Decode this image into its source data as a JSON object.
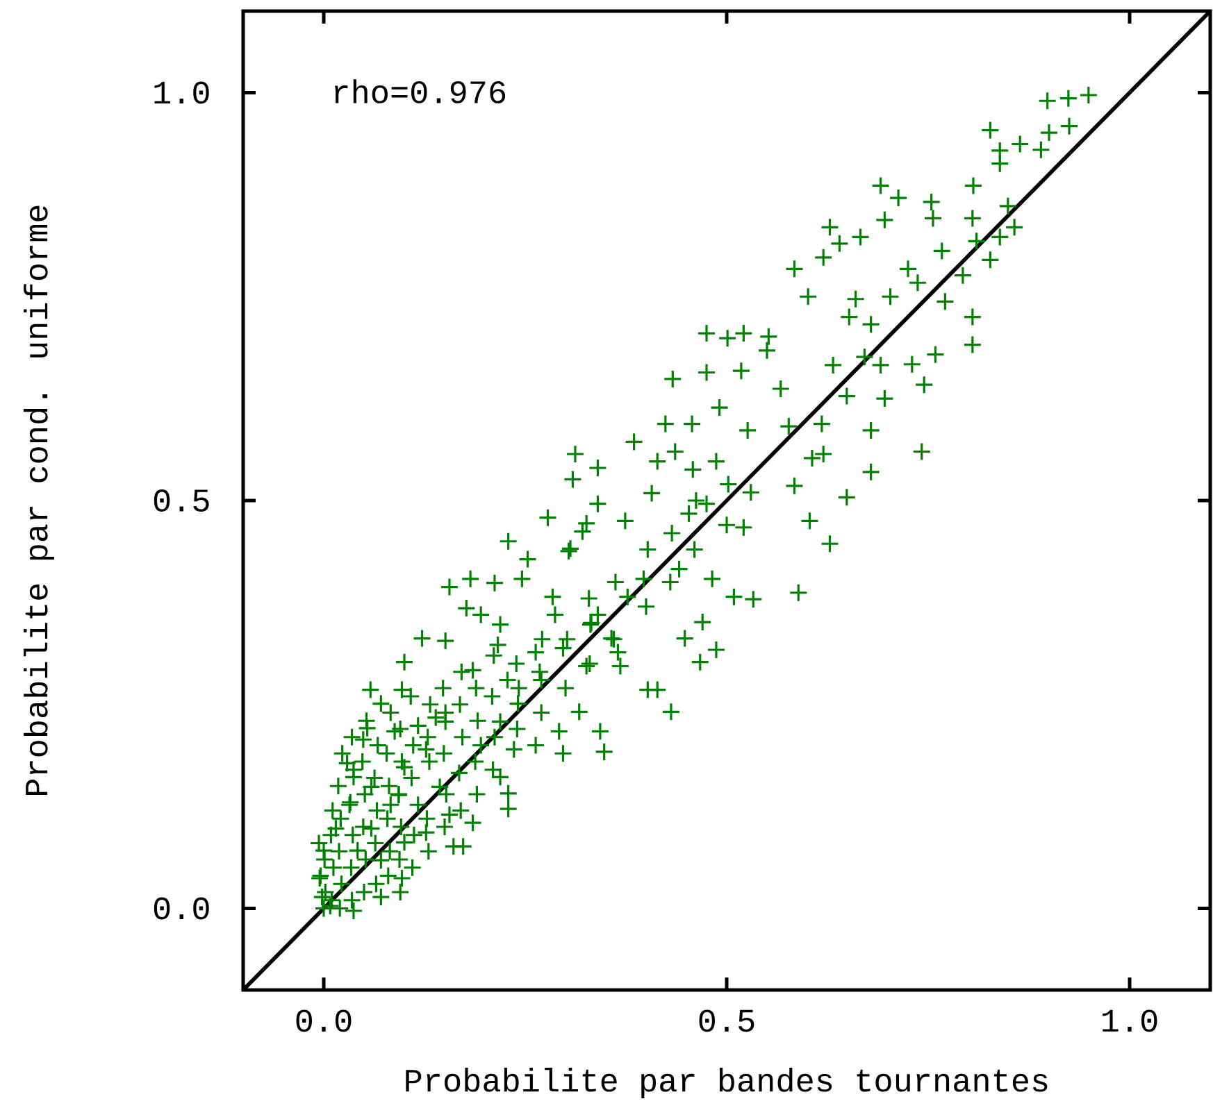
{
  "chart_data": {
    "type": "scatter",
    "xlabel": "Probabilite par bandes tournantes",
    "ylabel": "Probabilite par cond. uniforme",
    "annotations": [
      "rho=0.976"
    ],
    "xlim": [
      -0.1,
      1.1
    ],
    "ylim": [
      -0.1,
      1.1
    ],
    "xticks": [
      {
        "value": 0,
        "label": "0.0"
      },
      0.5,
      {
        "value": 1,
        "label": "1.0"
      }
    ],
    "yticks": [
      {
        "value": 0,
        "label": "0.0"
      },
      0.5,
      {
        "value": 1,
        "label": "1.0"
      }
    ],
    "marker": "cross",
    "series": [
      {
        "type": "scatter",
        "color": "#008000",
        "x": [
          0.924,
          0.949,
          0.898,
          0.827,
          0.839,
          0.864,
          0.9,
          0.925,
          0.89,
          0.839,
          0.691,
          0.713,
          0.754,
          0.806,
          0.696,
          0.756,
          0.805,
          0.849,
          0.857,
          0.628,
          0.64,
          0.666,
          0.62,
          0.584,
          0.601,
          0.66,
          0.725,
          0.767,
          0.81,
          0.839,
          0.827,
          0.793,
          0.703,
          0.737,
          0.771,
          0.805,
          0.805,
          0.759,
          0.652,
          0.679,
          0.632,
          0.671,
          0.691,
          0.73,
          0.745,
          0.696,
          0.649,
          0.679,
          0.742,
          0.475,
          0.501,
          0.521,
          0.552,
          0.475,
          0.518,
          0.433,
          0.567,
          0.55,
          0.491,
          0.424,
          0.457,
          0.526,
          0.577,
          0.618,
          0.606,
          0.487,
          0.436,
          0.385,
          0.312,
          0.34,
          0.414,
          0.458,
          0.309,
          0.407,
          0.34,
          0.278,
          0.326,
          0.374,
          0.229,
          0.306,
          0.253,
          0.156,
          0.182,
          0.212,
          0.246,
          0.62,
          0.679,
          0.649,
          0.584,
          0.603,
          0.628,
          0.589,
          0.533,
          0.509,
          0.521,
          0.475,
          0.453,
          0.441,
          0.482,
          0.47,
          0.487,
          0.467,
          0.431,
          0.414,
          0.448,
          0.368,
          0.34,
          0.284,
          0.228,
          0.357,
          0.397,
          0.058,
          0.071,
          0.054,
          0.122,
          0.151,
          0.177,
          0.195,
          0.304,
          0.321,
          0.185,
          0.216,
          0.1,
          0.097,
          0.139,
          0.236,
          0.263,
          0.297,
          0.348,
          0.402,
          0.229,
          0.229,
          0.185,
          0.161,
          0.127,
          0.097,
          0.071,
          0.037,
          0.008,
          -0.002,
          -0.005,
          0.0,
          0.015,
          0.032,
          0.037,
          0.029,
          0.049,
          0.088,
          0.117,
          0.042,
          0.059,
          0.083,
          0.071,
          0.1,
          0.117,
          0.144,
          0.168,
          0.195,
          0.219,
          0.241,
          0.27,
          0.297,
          0.331,
          0.377,
          0.263,
          0.151,
          0.127,
          0.1,
          0.059,
          0.093,
          0.219,
          0.287,
          0.326,
          0.365,
          0.317,
          0.343,
          0.292,
          0.219,
          0.156,
          0.173,
          0.0,
          0.002,
          -0.004,
          0.001,
          -0.006,
          0.01,
          0.012,
          0.009,
          0.011,
          0.02,
          0.022,
          0.019,
          0.021,
          0.018,
          0.023,
          0.035,
          0.034,
          0.036,
          0.033,
          0.037,
          0.035,
          0.05,
          0.052,
          0.049,
          0.051,
          0.048,
          0.053,
          0.065,
          0.064,
          0.066,
          0.063,
          0.067,
          0.08,
          0.082,
          0.079,
          0.081,
          0.078,
          0.083,
          0.095,
          0.094,
          0.096,
          0.093,
          0.097,
          0.095,
          0.11,
          0.112,
          0.109,
          0.111,
          0.108,
          0.13,
          0.128,
          0.131,
          0.129,
          0.132,
          0.15,
          0.152,
          0.149,
          0.151,
          0.148,
          0.17,
          0.172,
          0.169,
          0.171,
          0.19,
          0.188,
          0.191,
          0.189,
          0.21,
          0.212,
          0.209,
          0.211,
          0.24,
          0.242,
          0.239,
          0.27,
          0.268,
          0.271,
          0.3,
          0.302,
          0.33,
          0.332,
          0.329,
          0.36,
          0.362,
          0.4,
          0.402,
          0.43,
          0.432,
          0.46,
          0.462,
          0.5,
          0.502,
          0.53
        ],
        "values": [
          0.993,
          0.997,
          0.99,
          0.954,
          0.929,
          0.937,
          0.951,
          0.959,
          0.93,
          0.913,
          0.886,
          0.871,
          0.866,
          0.886,
          0.844,
          0.846,
          0.846,
          0.861,
          0.835,
          0.835,
          0.815,
          0.823,
          0.798,
          0.784,
          0.75,
          0.747,
          0.784,
          0.806,
          0.818,
          0.823,
          0.795,
          0.776,
          0.75,
          0.767,
          0.744,
          0.725,
          0.691,
          0.679,
          0.725,
          0.716,
          0.666,
          0.676,
          0.666,
          0.667,
          0.642,
          0.625,
          0.628,
          0.586,
          0.56,
          0.705,
          0.699,
          0.705,
          0.701,
          0.657,
          0.659,
          0.649,
          0.637,
          0.684,
          0.614,
          0.594,
          0.594,
          0.586,
          0.591,
          0.594,
          0.552,
          0.548,
          0.56,
          0.572,
          0.557,
          0.54,
          0.548,
          0.538,
          0.526,
          0.509,
          0.496,
          0.479,
          0.472,
          0.475,
          0.45,
          0.441,
          0.428,
          0.394,
          0.404,
          0.399,
          0.404,
          0.557,
          0.535,
          0.504,
          0.518,
          0.475,
          0.447,
          0.387,
          0.379,
          0.382,
          0.467,
          0.496,
          0.484,
          0.416,
          0.404,
          0.351,
          0.317,
          0.302,
          0.241,
          0.268,
          0.331,
          0.297,
          0.36,
          0.382,
          0.28,
          0.331,
          0.404,
          0.268,
          0.251,
          0.221,
          0.331,
          0.328,
          0.368,
          0.36,
          0.438,
          0.462,
          0.292,
          0.323,
          0.302,
          0.268,
          0.234,
          0.195,
          0.2,
          0.19,
          0.192,
          0.268,
          0.141,
          0.122,
          0.105,
          0.076,
          0.093,
          0.037,
          0.014,
          -0.003,
          0.003,
          0.014,
          0.037,
          0.071,
          0.098,
          0.127,
          0.161,
          0.178,
          0.207,
          0.217,
          0.224,
          0.071,
          0.098,
          0.127,
          0.059,
          0.081,
          0.127,
          0.149,
          0.166,
          0.2,
          0.229,
          0.251,
          0.28,
          0.319,
          0.348,
          0.382,
          0.314,
          0.229,
          0.195,
          0.173,
          0.149,
          0.139,
          0.348,
          0.36,
          0.297,
          0.314,
          0.241,
          0.217,
          0.217,
          0.161,
          0.115,
          0.076,
          0.0,
          0.02,
          0.04,
          0.06,
          0.08,
          0.01,
          0.05,
          0.09,
          0.12,
          0.0,
          0.03,
          0.07,
          0.11,
          0.15,
          0.19,
          0.01,
          0.05,
          0.09,
          0.13,
          0.17,
          0.21,
          0.02,
          0.06,
          0.1,
          0.14,
          0.18,
          0.23,
          0.03,
          0.08,
          0.12,
          0.16,
          0.2,
          0.04,
          0.07,
          0.11,
          0.15,
          0.19,
          0.24,
          0.02,
          0.06,
          0.1,
          0.14,
          0.18,
          0.22,
          0.05,
          0.09,
          0.16,
          0.2,
          0.26,
          0.07,
          0.11,
          0.18,
          0.21,
          0.25,
          0.1,
          0.14,
          0.19,
          0.24,
          0.27,
          0.12,
          0.21,
          0.25,
          0.29,
          0.14,
          0.18,
          0.23,
          0.27,
          0.17,
          0.21,
          0.26,
          0.31,
          0.22,
          0.27,
          0.3,
          0.24,
          0.29,
          0.33,
          0.27,
          0.33,
          0.3,
          0.35,
          0.38,
          0.33,
          0.4,
          0.37,
          0.44,
          0.4,
          0.46,
          0.44,
          0.5,
          0.47,
          0.52,
          0.51
        ]
      },
      {
        "type": "line",
        "color": "#000000",
        "marker": "none",
        "line_style": "solid",
        "x": [
          -0.1,
          1.1
        ],
        "values": [
          -0.1,
          1.1
        ]
      }
    ]
  }
}
